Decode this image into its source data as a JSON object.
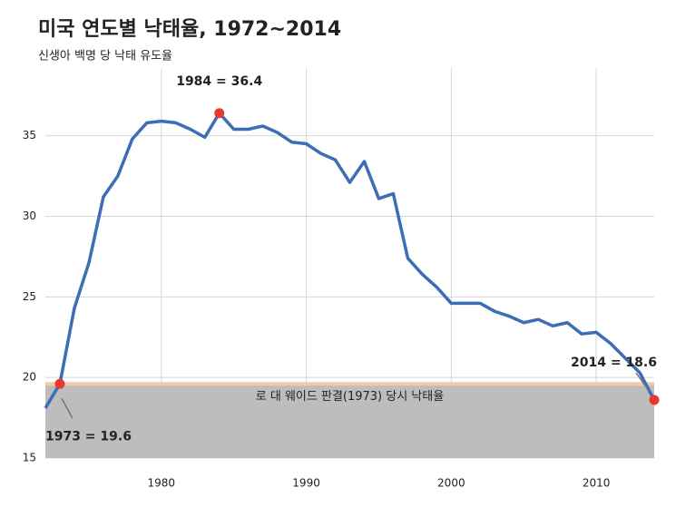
{
  "chart_data": {
    "type": "line",
    "title": "미국 연도별 낙태율, 1972~2014",
    "subtitle": "신생아 백명 당 낙태 유도율",
    "x": [
      1972,
      1973,
      1974,
      1975,
      1976,
      1977,
      1978,
      1979,
      1980,
      1981,
      1982,
      1983,
      1984,
      1985,
      1986,
      1987,
      1988,
      1989,
      1990,
      1991,
      1992,
      1993,
      1994,
      1995,
      1996,
      1997,
      1998,
      1999,
      2000,
      2001,
      2002,
      2003,
      2004,
      2005,
      2006,
      2007,
      2008,
      2009,
      2010,
      2011,
      2012,
      2013,
      2014
    ],
    "series": [
      {
        "name": "낙태율",
        "color": "#3d6db5",
        "values": [
          18.1,
          19.6,
          24.3,
          27.1,
          31.2,
          32.5,
          34.8,
          35.8,
          35.9,
          35.8,
          35.4,
          34.9,
          36.4,
          35.4,
          35.4,
          35.6,
          35.2,
          34.6,
          34.5,
          33.9,
          33.5,
          32.1,
          33.4,
          31.1,
          31.4,
          27.4,
          26.4,
          25.6,
          24.6,
          24.6,
          24.6,
          24.1,
          23.8,
          23.4,
          23.6,
          23.2,
          23.4,
          22.7,
          22.8,
          22.1,
          21.2,
          20.3,
          18.6
        ]
      }
    ],
    "xlim": [
      1972,
      2014
    ],
    "ylim": [
      15,
      39.2
    ],
    "xticks": [
      1980,
      1990,
      2000,
      2010
    ],
    "yticks": [
      15,
      20,
      25,
      30,
      35
    ],
    "grid": true,
    "reference_band": {
      "from": 15,
      "to": 19.6,
      "color": "#bdbdbd",
      "line_color": "#f5c9a8",
      "label": "로 대 웨이드 판결(1973) 당시 낙태율"
    },
    "annotations": [
      {
        "text": "1973 = 19.6",
        "x": 1973,
        "y": 19.6,
        "side": "below"
      },
      {
        "text": "1984 = 36.4",
        "x": 1984,
        "y": 36.4,
        "side": "above"
      },
      {
        "text": "2014 = 18.6",
        "x": 2014,
        "y": 18.6,
        "side": "left"
      }
    ],
    "highlight_color": "#e8392f"
  }
}
